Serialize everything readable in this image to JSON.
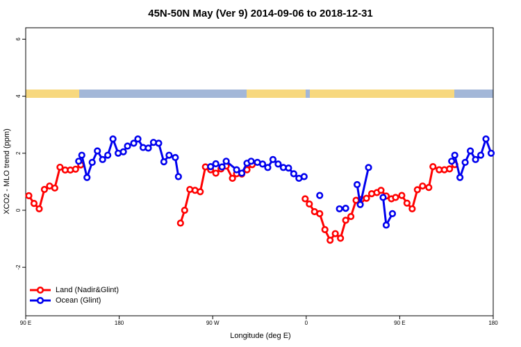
{
  "chart_data": {
    "type": "line",
    "title": "45N-50N May (Ver 9)   2014-09-06 to 2018-12-31",
    "xlabel": "Longitude (deg E)",
    "ylabel": "XCO2 - MLO trend (ppm)",
    "xlim": [
      90,
      540
    ],
    "ylim": [
      -3.7,
      6.4
    ],
    "xticks": [
      {
        "value": 90,
        "label": "90 E"
      },
      180,
      {
        "value": 270,
        "label": "90 W"
      },
      {
        "value": 360,
        "label": "0"
      },
      {
        "value": 450,
        "label": "90 E"
      },
      {
        "value": 540,
        "label": "180"
      }
    ],
    "yticks": [
      -2,
      0,
      2,
      4,
      6
    ],
    "legend": "bottom-left",
    "series": [
      {
        "name": "Land (Nadir&Glint)",
        "color": "#ff0000",
        "x": [
          93,
          98,
          103,
          108,
          113,
          118,
          123,
          128,
          133,
          138,
          143,
          null,
          239,
          243,
          248,
          253,
          258,
          263,
          268,
          273,
          278,
          283,
          289,
          293,
          298,
          303,
          308,
          null,
          359,
          363,
          368,
          373,
          378,
          383,
          388,
          393,
          398,
          403,
          408,
          413,
          418,
          423,
          428,
          432,
          437,
          442,
          446,
          452,
          457,
          462,
          467,
          472,
          478,
          482,
          488,
          493,
          498,
          503
        ],
        "values": [
          0.51,
          0.24,
          0.05,
          0.73,
          0.85,
          0.78,
          1.51,
          1.41,
          1.41,
          1.44,
          1.59,
          null,
          -0.45,
          0.0,
          0.73,
          0.7,
          0.65,
          1.52,
          1.42,
          1.3,
          1.45,
          1.55,
          1.12,
          1.28,
          1.27,
          1.42,
          1.6,
          null,
          0.4,
          0.22,
          -0.05,
          -0.12,
          -0.68,
          -1.05,
          -0.82,
          -0.98,
          -0.35,
          -0.22,
          0.35,
          0.38,
          0.42,
          0.58,
          0.62,
          0.7,
          0.5,
          0.4,
          0.45,
          0.52,
          0.25,
          0.05,
          0.72,
          0.85,
          0.8,
          1.53,
          1.42,
          1.42,
          1.45,
          1.6
        ]
      },
      {
        "name": "Ocean (Glint)",
        "color": "#0000ee",
        "x": [
          141,
          144,
          149,
          154,
          159,
          164,
          169,
          174,
          179,
          184,
          188,
          194,
          198,
          203,
          208,
          213,
          218,
          223,
          228,
          234,
          237,
          null,
          268,
          273,
          279,
          283,
          293,
          298,
          303,
          307,
          313,
          318,
          323,
          328,
          333,
          338,
          343,
          348,
          353,
          358,
          null,
          373,
          null,
          392,
          398,
          null,
          409,
          412,
          420,
          null,
          434,
          437,
          443,
          null,
          500,
          503,
          508,
          513,
          518,
          523,
          528,
          533,
          538
        ],
        "values": [
          1.72,
          1.93,
          1.15,
          1.68,
          2.08,
          1.78,
          1.93,
          2.5,
          2.0,
          2.05,
          2.25,
          2.35,
          2.5,
          2.2,
          2.18,
          2.38,
          2.35,
          1.7,
          1.93,
          1.85,
          1.18,
          null,
          1.53,
          1.63,
          1.52,
          1.72,
          1.42,
          1.3,
          1.65,
          1.72,
          1.68,
          1.62,
          1.5,
          1.78,
          1.62,
          1.5,
          1.48,
          1.28,
          1.12,
          1.18,
          null,
          0.52,
          null,
          0.05,
          0.07,
          null,
          0.9,
          0.2,
          1.5,
          null,
          0.45,
          -0.52,
          -0.12,
          null,
          1.72,
          1.93,
          1.15,
          1.68,
          2.08,
          1.78,
          1.93,
          2.5,
          2.0
        ]
      }
    ]
  }
}
